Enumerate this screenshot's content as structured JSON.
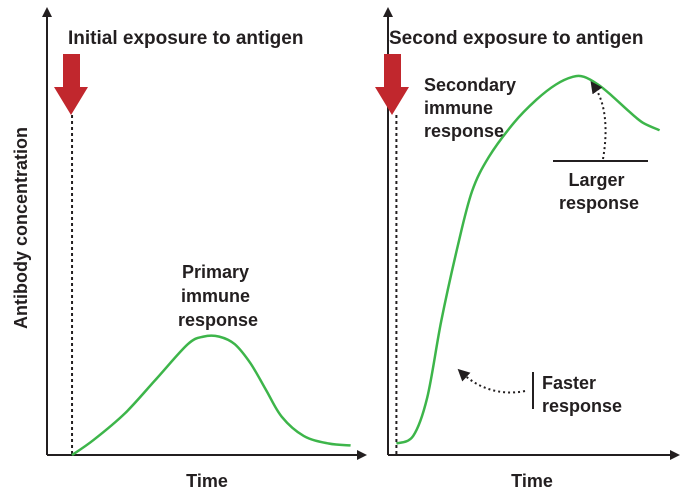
{
  "chart_data": [
    {
      "type": "line",
      "title": "Initial exposure to antigen",
      "xlabel": "Time",
      "ylabel": "Antibody concentration",
      "annotation": [
        "Primary",
        "immune",
        "response"
      ],
      "xlim": [
        0,
        10
      ],
      "ylim": [
        0,
        10
      ],
      "exposure_x": 0.8,
      "series": [
        {
          "x": [
            0.8,
            1.5,
            2.5,
            3.5,
            4.5,
            5.0,
            5.5,
            6.0,
            6.5,
            7.0,
            7.5,
            8.2,
            9.0,
            9.7
          ],
          "y": [
            0.0,
            0.4,
            1.1,
            2.0,
            2.9,
            3.1,
            3.1,
            2.9,
            2.4,
            1.7,
            1.0,
            0.5,
            0.3,
            0.25
          ]
        }
      ],
      "color": "#3db54a"
    },
    {
      "type": "line",
      "title": "Second exposure to antigen",
      "xlabel": "Time",
      "annotation": [
        "Secondary",
        "immune",
        "response"
      ],
      "callouts": [
        {
          "lines": [
            "Larger",
            "response"
          ]
        },
        {
          "lines": [
            "Faster",
            "response"
          ]
        }
      ],
      "xlim": [
        0,
        10
      ],
      "ylim": [
        0,
        10
      ],
      "exposure_x": 0.3,
      "series": [
        {
          "x": [
            0.3,
            0.9,
            1.4,
            1.9,
            2.5,
            3.0,
            3.6,
            4.5,
            5.3,
            6.0,
            6.6,
            7.0,
            7.5,
            8.0,
            8.6,
            9.1,
            9.7
          ],
          "y": [
            0.3,
            0.5,
            1.5,
            3.5,
            5.5,
            6.9,
            7.8,
            8.7,
            9.3,
            9.7,
            9.9,
            9.9,
            9.7,
            9.4,
            9.0,
            8.7,
            8.5
          ]
        }
      ],
      "color": "#3db54a"
    }
  ],
  "colors": {
    "arrow": "#c1272d",
    "curve": "#3db54a",
    "axis": "#231f20",
    "text": "#231f20"
  }
}
